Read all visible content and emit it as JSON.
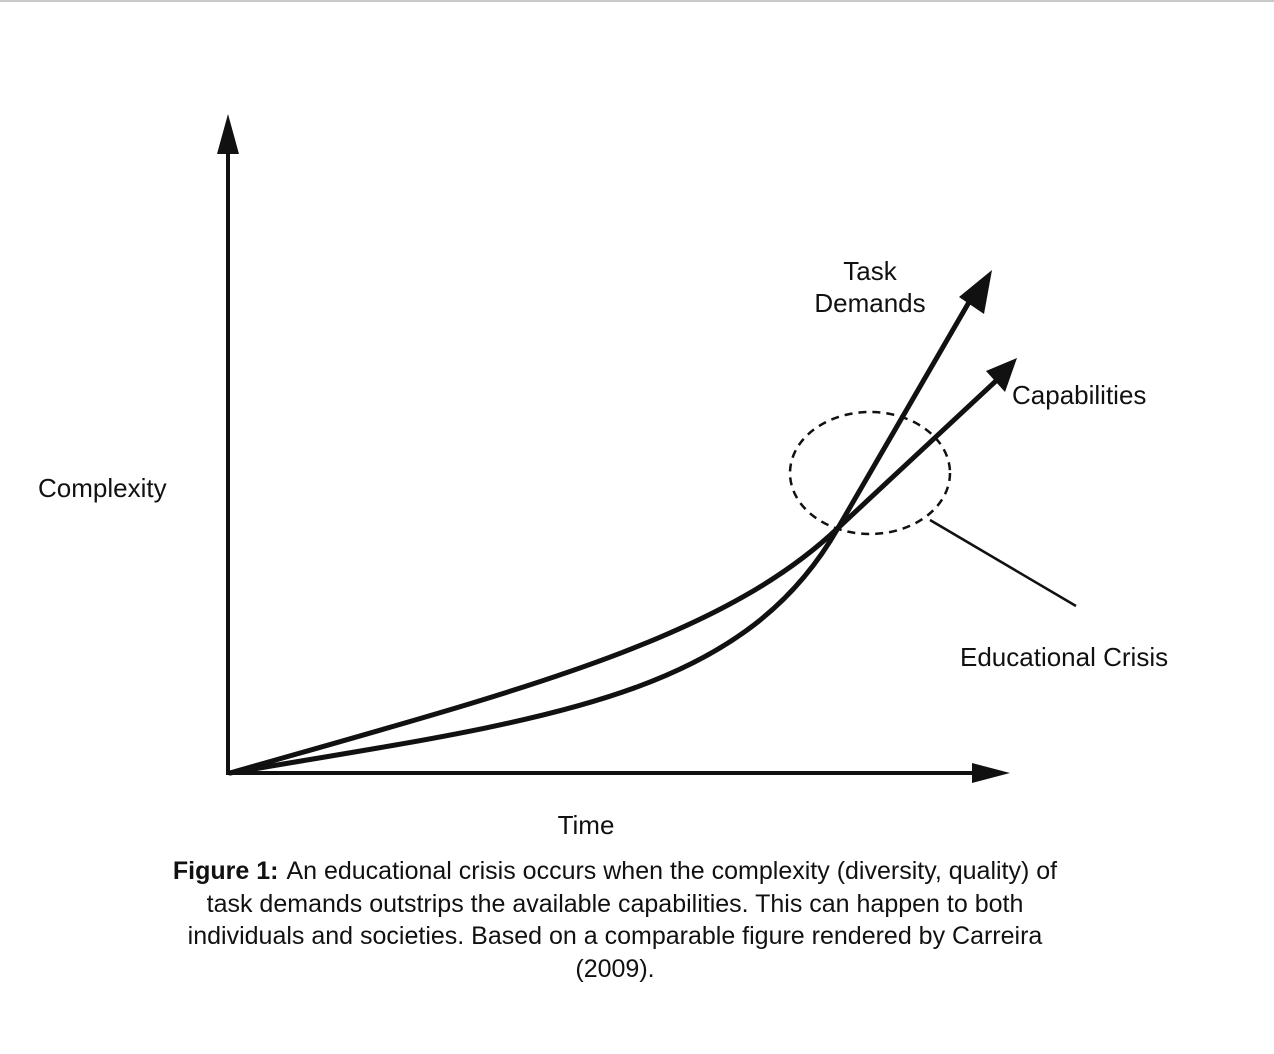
{
  "diagram": {
    "axis_labels": {
      "y": "Complexity",
      "x": "Time"
    },
    "curve_labels": {
      "task_demands": [
        "Task",
        "Demands"
      ],
      "capabilities": "Capabilities"
    },
    "annotation": "Educational Crisis"
  },
  "caption": {
    "lead": "Figure 1:",
    "text": "An educational crisis occurs when the complexity (diversity, quality) of task demands outstrips the available capabilities. This can happen to both individuals and societies. Based on a comparable figure rendered by Carreira (2009)."
  },
  "colors": {
    "ink": "#111111",
    "background": "#ffffff"
  }
}
